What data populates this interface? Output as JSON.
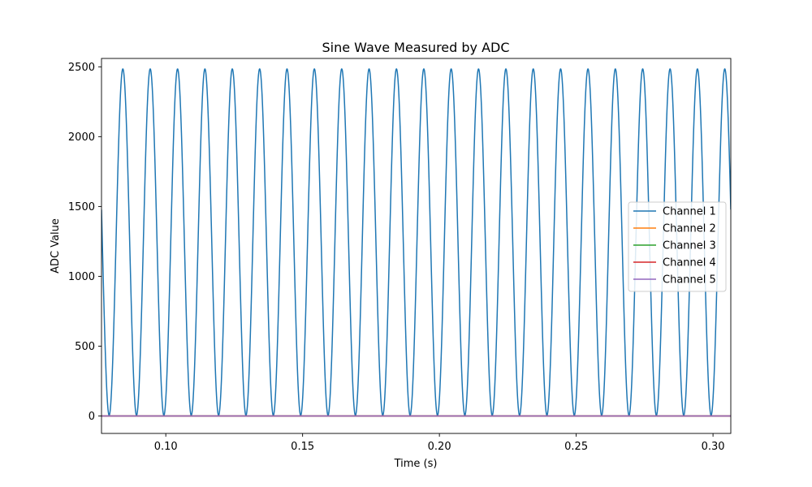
{
  "chart_data": {
    "type": "line",
    "title": "Sine Wave Measured by ADC",
    "xlabel": "Time (s)",
    "ylabel": "ADC Value",
    "xlim": [
      0.0765,
      0.3065
    ],
    "ylim": [
      -125,
      2560
    ],
    "x_ticks": [
      0.1,
      0.15,
      0.2,
      0.25,
      0.3
    ],
    "x_tick_labels": [
      "0.10",
      "0.15",
      "0.20",
      "0.25",
      "0.30"
    ],
    "y_ticks": [
      0,
      500,
      1000,
      1500,
      2000,
      2500
    ],
    "y_tick_labels": [
      "0",
      "500",
      "1000",
      "1500",
      "2000",
      "2500"
    ],
    "grid": false,
    "legend_location": "center-right",
    "series": [
      {
        "name": "Channel 1",
        "color": "#1f77b4",
        "function": "sine",
        "amplitude": 1240,
        "offset": 1245,
        "frequency_hz": 100,
        "peak_time_s": 0.0843
      },
      {
        "name": "Channel 2",
        "color": "#ff7f0e",
        "constant": 0
      },
      {
        "name": "Channel 3",
        "color": "#2ca02c",
        "constant": 0
      },
      {
        "name": "Channel 4",
        "color": "#d62728",
        "constant": 0
      },
      {
        "name": "Channel 5",
        "color": "#9467bd",
        "constant": 0
      }
    ]
  }
}
